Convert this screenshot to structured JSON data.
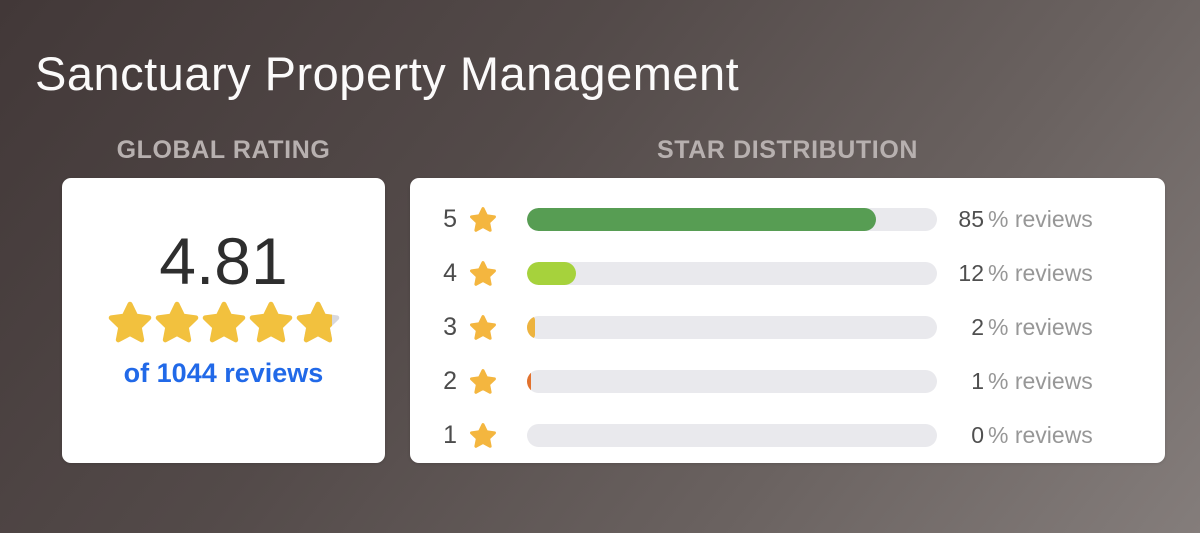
{
  "page": {
    "title": "Sanctuary Property Management"
  },
  "global_rating": {
    "section_label": "GLOBAL RATING",
    "score": "4.81",
    "stars_total": 5,
    "last_star_fill_percent": 81,
    "reviews_label": "of 1044 reviews"
  },
  "star_distribution": {
    "section_label": "STAR DISTRIBUTION",
    "percent_suffix": "% reviews",
    "rows": [
      {
        "stars": "5",
        "percent": 85,
        "bar_color": "#579d53"
      },
      {
        "stars": "4",
        "percent": 12,
        "bar_color": "#a6d23c"
      },
      {
        "stars": "3",
        "percent": 2,
        "bar_color": "#edb33e"
      },
      {
        "stars": "2",
        "percent": 1,
        "bar_color": "#e2722e"
      },
      {
        "stars": "1",
        "percent": 0,
        "bar_color": "transparent"
      }
    ]
  },
  "chart_data": {
    "type": "bar",
    "categories": [
      "5 stars",
      "4 stars",
      "3 stars",
      "2 stars",
      "1 star"
    ],
    "values": [
      85,
      12,
      2,
      1,
      0
    ],
    "title": "STAR DISTRIBUTION",
    "xlabel": "",
    "ylabel": "% reviews",
    "xlim": [
      0,
      100
    ],
    "bar_colors": [
      "#579d53",
      "#a6d23c",
      "#edb33e",
      "#e2722e",
      "#e9e9ed"
    ]
  },
  "colors": {
    "background_from": "#423838",
    "background_to": "#847d7b",
    "card": "#ffffff",
    "section_label": "#b7b0af",
    "score_text": "#2e2e2e",
    "reviews_link": "#2169e8",
    "star_gold": "#f2c13e",
    "star_amber": "#f4b63f",
    "star_empty": "#d8d8dd",
    "bar_track": "#e9e9ed"
  }
}
